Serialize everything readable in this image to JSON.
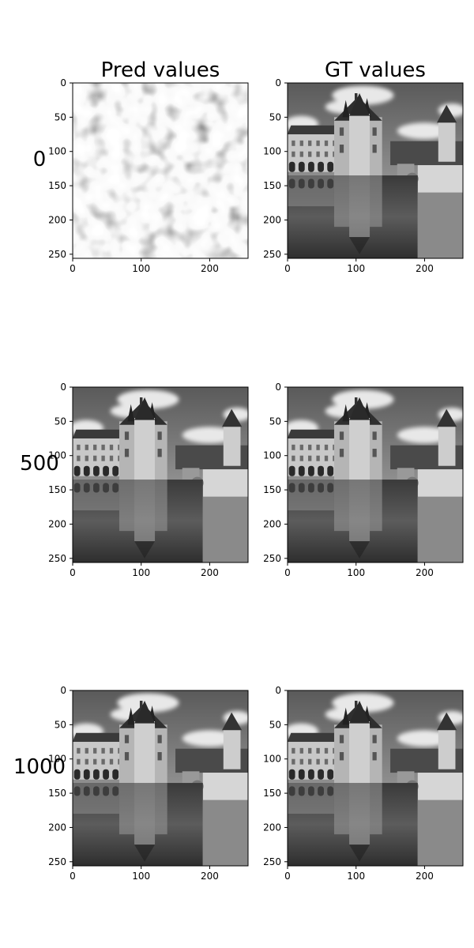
{
  "figure": {
    "column_titles": [
      "Pred values",
      "GT values"
    ],
    "row_labels": [
      "0",
      "500",
      "1000"
    ]
  },
  "chart_data": [
    {
      "type": "heatmap",
      "title": "Pred values",
      "row_label": "0",
      "content": "noise",
      "xlim": [
        0,
        256
      ],
      "ylim": [
        256,
        0
      ],
      "xticks": [
        0,
        100,
        200
      ],
      "yticks": [
        0,
        50,
        100,
        150,
        200,
        250
      ],
      "colormap": "gray"
    },
    {
      "type": "heatmap",
      "title": "GT values",
      "row_label": "0",
      "content": "castle",
      "xlim": [
        0,
        256
      ],
      "ylim": [
        256,
        0
      ],
      "xticks": [
        0,
        100,
        200
      ],
      "yticks": [
        0,
        50,
        100,
        150,
        200,
        250
      ],
      "colormap": "gray"
    },
    {
      "type": "heatmap",
      "title": "",
      "row_label": "500",
      "content": "castle",
      "xlim": [
        0,
        256
      ],
      "ylim": [
        256,
        0
      ],
      "xticks": [
        0,
        100,
        200
      ],
      "yticks": [
        0,
        50,
        100,
        150,
        200,
        250
      ],
      "colormap": "gray"
    },
    {
      "type": "heatmap",
      "title": "",
      "row_label": "500",
      "content": "castle",
      "xlim": [
        0,
        256
      ],
      "ylim": [
        256,
        0
      ],
      "xticks": [
        0,
        100,
        200
      ],
      "yticks": [
        0,
        50,
        100,
        150,
        200,
        250
      ],
      "colormap": "gray"
    },
    {
      "type": "heatmap",
      "title": "",
      "row_label": "1000",
      "content": "castle",
      "xlim": [
        0,
        256
      ],
      "ylim": [
        256,
        0
      ],
      "xticks": [
        0,
        100,
        200
      ],
      "yticks": [
        0,
        50,
        100,
        150,
        200,
        250
      ],
      "colormap": "gray"
    },
    {
      "type": "heatmap",
      "title": "",
      "row_label": "1000",
      "content": "castle",
      "xlim": [
        0,
        256
      ],
      "ylim": [
        256,
        0
      ],
      "xticks": [
        0,
        100,
        200
      ],
      "yticks": [
        0,
        50,
        100,
        150,
        200,
        250
      ],
      "colormap": "gray"
    }
  ]
}
